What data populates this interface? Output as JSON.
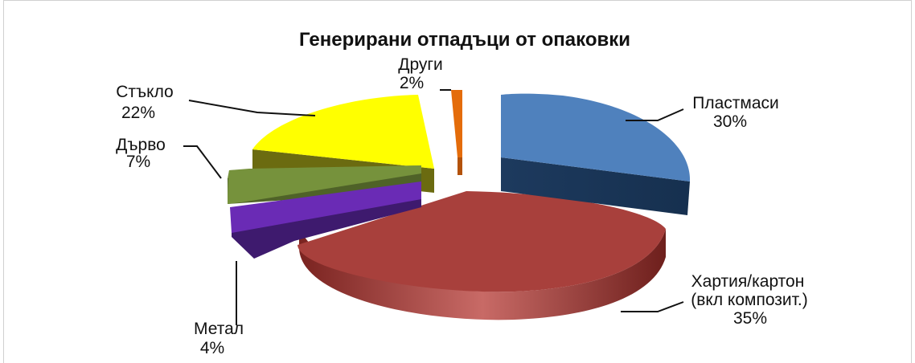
{
  "chart_data": {
    "type": "pie",
    "title": "Генерирани отпадъци от опаковки",
    "slices": [
      {
        "name": "Пластмаси",
        "value": 30,
        "label": "30%",
        "color": "#4f81bd"
      },
      {
        "name": "Хартия/картон (вкл композит.)",
        "value": 35,
        "label": "35%",
        "color": "#a8403c"
      },
      {
        "name": "Метал",
        "value": 4,
        "label": "4%",
        "color": "#6a2bb5"
      },
      {
        "name": "Дърво",
        "value": 7,
        "label": "7%",
        "color": "#76923c"
      },
      {
        "name": "Стъкло",
        "value": 22,
        "label": "22%",
        "color": "#ffff00"
      },
      {
        "name": "Други",
        "value": 2,
        "label": "2%",
        "color": "#e46c0a"
      }
    ],
    "labels": {
      "plastic_line1": "Пластмаси",
      "paper_line1": "Хартия/картон",
      "paper_line2": "(вкл композит.)",
      "metal_line1": "Метал",
      "wood_line1": "Дърво",
      "glass_line1": "Стъкло",
      "other_line1": "Други"
    }
  }
}
